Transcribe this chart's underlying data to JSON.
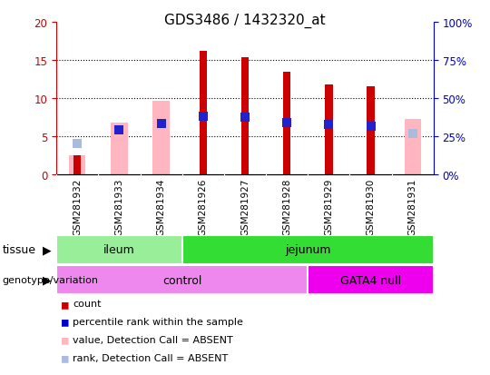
{
  "title": "GDS3486 / 1432320_at",
  "samples": [
    "GSM281932",
    "GSM281933",
    "GSM281934",
    "GSM281926",
    "GSM281927",
    "GSM281928",
    "GSM281929",
    "GSM281930",
    "GSM281931"
  ],
  "red_values": [
    2.5,
    0.05,
    0.05,
    16.2,
    15.3,
    13.4,
    11.7,
    11.5,
    0.05
  ],
  "pink_values": [
    2.5,
    6.8,
    9.6,
    0,
    0,
    0,
    0,
    0,
    7.2
  ],
  "blue_values": [
    4.0,
    5.8,
    6.6,
    7.6,
    7.5,
    6.7,
    6.5,
    6.3,
    0
  ],
  "lightblue_values": [
    4.0,
    0,
    0,
    0,
    0,
    0,
    0,
    0,
    5.3
  ],
  "ylim_left": [
    0,
    20
  ],
  "ylim_right": [
    0,
    100
  ],
  "yticks_left": [
    0,
    5,
    10,
    15,
    20
  ],
  "yticks_right": [
    0,
    25,
    50,
    75,
    100
  ],
  "ytick_labels_left": [
    "0",
    "5",
    "10",
    "15",
    "20"
  ],
  "ytick_labels_right": [
    "0%",
    "25%",
    "50%",
    "75%",
    "100%"
  ],
  "tissue_items": [
    {
      "label": "ileum",
      "start": 0,
      "end": 3,
      "color": "#99EE99"
    },
    {
      "label": "jejunum",
      "start": 3,
      "end": 9,
      "color": "#33DD33"
    }
  ],
  "genotype_items": [
    {
      "label": "control",
      "start": 0,
      "end": 6,
      "color": "#EE88EE"
    },
    {
      "label": "GATA4 null",
      "start": 6,
      "end": 9,
      "color": "#EE00EE"
    }
  ],
  "legend_items": [
    {
      "color": "#CC0000",
      "label": "count"
    },
    {
      "color": "#0000CC",
      "label": "percentile rank within the sample"
    },
    {
      "color": "#FFB6C1",
      "label": "value, Detection Call = ABSENT"
    },
    {
      "color": "#AABBDD",
      "label": "rank, Detection Call = ABSENT"
    }
  ],
  "pink_bar_width": 0.4,
  "red_bar_width": 0.18,
  "dot_size": 45,
  "background_color": "#FFFFFF",
  "plot_bg_color": "#FFFFFF",
  "xtick_bg_color": "#CCCCCC",
  "grid_color": "#000000",
  "left_axis_color": "#CC0000",
  "right_axis_color": "#0000CC",
  "xticklabel_fontsize": 7.5,
  "yticklabel_fontsize": 8.5,
  "title_fontsize": 11
}
